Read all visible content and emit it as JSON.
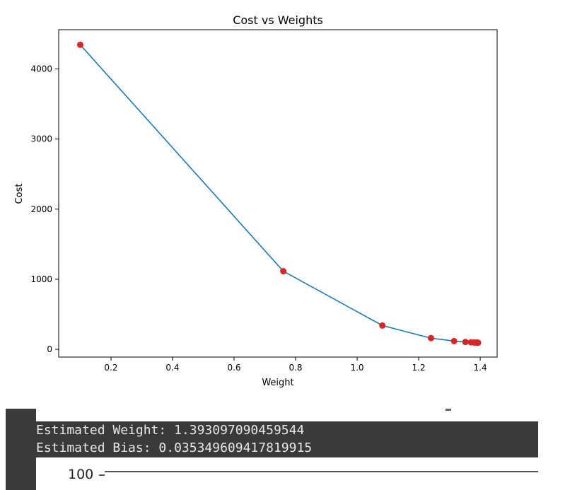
{
  "chart_data": {
    "type": "line",
    "title": "Cost vs Weights",
    "xlabel": "Weight",
    "ylabel": "Cost",
    "xlim": [
      0.03,
      1.455
    ],
    "ylim": [
      -110,
      4560
    ],
    "xticks": [
      0.2,
      0.4,
      0.6,
      0.8,
      1.0,
      1.2,
      1.4
    ],
    "xtick_labels": [
      "0.2",
      "0.4",
      "0.6",
      "0.8",
      "1.0",
      "1.2",
      "1.4"
    ],
    "yticks": [
      0,
      1000,
      2000,
      3000,
      4000
    ],
    "ytick_labels": [
      "0",
      "1000",
      "2000",
      "3000",
      "4000"
    ],
    "grid": false,
    "line_color": "#1f77b4",
    "marker_color": "#d62728",
    "x": [
      0.1,
      0.76,
      1.082,
      1.24,
      1.315,
      1.352,
      1.37,
      1.38,
      1.385,
      1.389,
      1.391,
      1.393
    ],
    "y": [
      4345,
      1115,
      340,
      160,
      118,
      105,
      100,
      98,
      97,
      96,
      96,
      95
    ]
  },
  "output": {
    "lines": [
      "Estimated Weight: 1.393097090459544",
      "Estimated Bias: 0.035349609417819915"
    ],
    "partial_tick_label": "100"
  }
}
